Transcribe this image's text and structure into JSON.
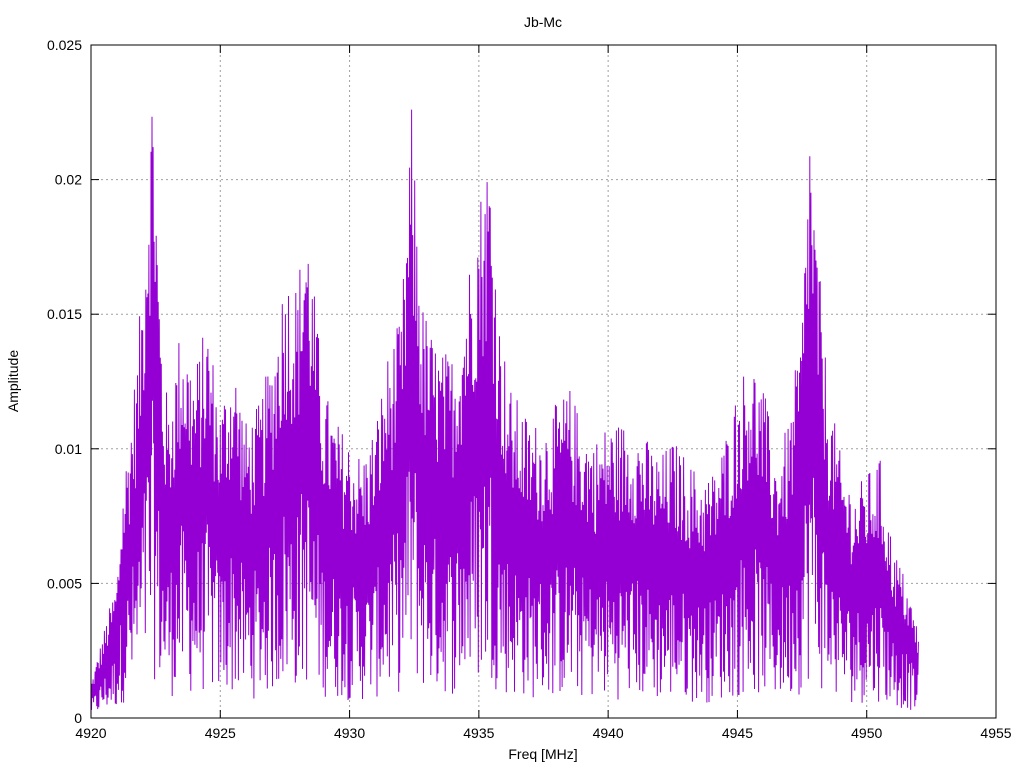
{
  "chart_data": {
    "type": "line",
    "title": "Jb-Mc",
    "xlabel": "Freq [MHz]",
    "ylabel": "Amplitude",
    "xlim": [
      4920,
      4955
    ],
    "ylim": [
      0,
      0.025
    ],
    "xticks": [
      4920,
      4925,
      4930,
      4935,
      4940,
      4945,
      4950,
      4955
    ],
    "xtick_labels": [
      "4920",
      "4925",
      "4930",
      "4935",
      "4940",
      "4945",
      "4950",
      "4955"
    ],
    "yticks": [
      0,
      0.005,
      0.01,
      0.015,
      0.02,
      0.025
    ],
    "ytick_labels": [
      "0",
      "0.005",
      "0.01",
      "0.015",
      "0.02",
      "0.025"
    ],
    "grid": true,
    "color": "#9400d3",
    "series": [
      {
        "x": [
          4920.0,
          4920.5,
          4921.0,
          4921.2,
          4921.5,
          4921.8,
          4922.0,
          4922.2,
          4922.4,
          4922.6,
          4922.8,
          4923.0,
          4923.5,
          4924.0,
          4924.5,
          4925.0,
          4925.5,
          4926.0,
          4926.5,
          4927.0,
          4927.5,
          4928.0,
          4928.3,
          4928.6,
          4929.0,
          4929.5,
          4930.0,
          4930.5,
          4931.0,
          4931.5,
          4932.0,
          4932.4,
          4932.8,
          4933.2,
          4933.6,
          4934.0,
          4934.5,
          4935.0,
          4935.4,
          4935.8,
          4936.2,
          4936.6,
          4937.0,
          4937.5,
          4938.0,
          4938.5,
          4939.0,
          4939.5,
          4940.0,
          4940.5,
          4941.0,
          4941.5,
          4942.0,
          4942.5,
          4943.0,
          4943.5,
          4944.0,
          4944.5,
          4945.0,
          4945.5,
          4946.0,
          4946.5,
          4947.0,
          4947.5,
          4947.8,
          4948.0,
          4948.5,
          4949.0,
          4949.5,
          4950.0,
          4950.5,
          4951.0,
          4951.5,
          4952.0
        ],
        "y": [
          0.001,
          0.0025,
          0.004,
          0.0065,
          0.0085,
          0.0105,
          0.013,
          0.0165,
          0.019,
          0.0135,
          0.01,
          0.009,
          0.0115,
          0.01,
          0.0115,
          0.009,
          0.0105,
          0.0085,
          0.009,
          0.0105,
          0.013,
          0.0125,
          0.015,
          0.0125,
          0.0095,
          0.0085,
          0.008,
          0.0075,
          0.0085,
          0.0105,
          0.0115,
          0.0175,
          0.012,
          0.011,
          0.0105,
          0.0105,
          0.0125,
          0.015,
          0.0165,
          0.0115,
          0.0095,
          0.009,
          0.0085,
          0.0085,
          0.009,
          0.0095,
          0.0085,
          0.008,
          0.0085,
          0.0085,
          0.0085,
          0.008,
          0.0075,
          0.008,
          0.0075,
          0.007,
          0.007,
          0.008,
          0.0095,
          0.0105,
          0.0095,
          0.0075,
          0.0085,
          0.0115,
          0.0175,
          0.0145,
          0.0095,
          0.0075,
          0.0065,
          0.007,
          0.0075,
          0.005,
          0.004,
          0.0025
        ]
      }
    ]
  }
}
